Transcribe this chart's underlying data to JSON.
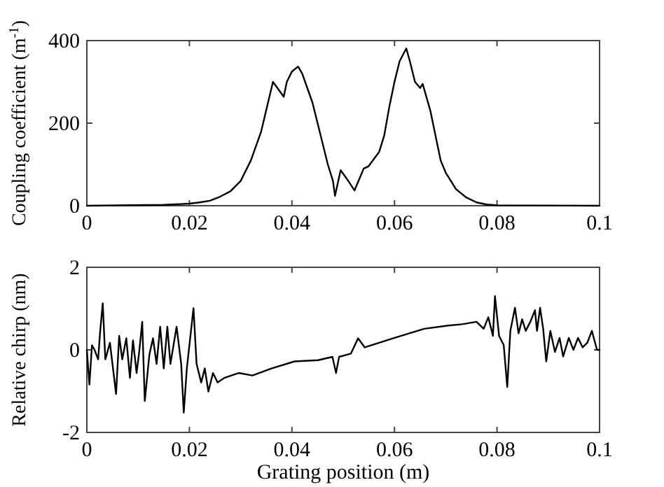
{
  "chart_data": [
    {
      "type": "line",
      "ylabel": "Coupling coefficient (m$^{-1}$)",
      "xlim": [
        0,
        0.1
      ],
      "xticks": [
        0,
        0.02,
        0.04,
        0.06,
        0.08,
        0.1
      ],
      "ylim": [
        0,
        400
      ],
      "yticks": [
        0,
        200,
        400
      ],
      "grid": false,
      "line_style": "solid",
      "marker": "none",
      "series": [
        {
          "color": "#000000",
          "x": [
            0,
            0.015,
            0.02,
            0.022,
            0.024,
            0.026,
            0.028,
            0.03,
            0.032,
            0.034,
            0.0363,
            0.0384,
            0.039,
            0.04,
            0.0412,
            0.042,
            0.044,
            0.046,
            0.047,
            0.048,
            0.0484,
            0.0495,
            0.051,
            0.0522,
            0.054,
            0.0549,
            0.057,
            0.058,
            0.059,
            0.06,
            0.061,
            0.0623,
            0.063,
            0.064,
            0.065,
            0.0655,
            0.067,
            0.068,
            0.069,
            0.07,
            0.072,
            0.074,
            0.076,
            0.078,
            0.08,
            0.1
          ],
          "values": [
            0,
            2,
            5,
            8,
            12,
            22,
            35,
            60,
            110,
            180,
            300,
            264,
            300,
            325,
            337,
            320,
            250,
            150,
            100,
            60,
            24,
            86,
            60,
            37,
            90,
            95,
            130,
            170,
            240,
            300,
            350,
            381,
            350,
            300,
            285,
            295,
            230,
            170,
            110,
            80,
            40,
            20,
            8,
            3,
            1,
            0
          ]
        }
      ]
    },
    {
      "type": "line",
      "xlabel": "Grating position (m)",
      "ylabel": "Relative chirp (nm)",
      "xlim": [
        0,
        0.1
      ],
      "xticks": [
        0,
        0.02,
        0.04,
        0.06,
        0.08,
        0.1
      ],
      "ylim": [
        -2,
        2
      ],
      "yticks": [
        -2,
        0,
        2
      ],
      "grid": false,
      "line_style": "solid",
      "marker": "none",
      "series": [
        {
          "color": "#000000",
          "x": [
            0,
            0.0005,
            0.001,
            0.0015,
            0.0022,
            0.0026,
            0.0031,
            0.0036,
            0.0045,
            0.0057,
            0.0063,
            0.0069,
            0.0077,
            0.0084,
            0.009,
            0.0097,
            0.0102,
            0.0108,
            0.0113,
            0.0122,
            0.0129,
            0.0136,
            0.0143,
            0.015,
            0.0157,
            0.0163,
            0.0175,
            0.0184,
            0.0189,
            0.0195,
            0.0208,
            0.0214,
            0.0223,
            0.023,
            0.0237,
            0.0246,
            0.0255,
            0.0268,
            0.0296,
            0.0323,
            0.036,
            0.0405,
            0.0451,
            0.0479,
            0.0486,
            0.0492,
            0.0515,
            0.0529,
            0.0542,
            0.057,
            0.06,
            0.0658,
            0.0705,
            0.0732,
            0.076,
            0.0774,
            0.0783,
            0.0792,
            0.0796,
            0.0804,
            0.0813,
            0.082,
            0.0826,
            0.0835,
            0.0842,
            0.0849,
            0.0856,
            0.0865,
            0.0874,
            0.0878,
            0.0884,
            0.089,
            0.0896,
            0.0904,
            0.0913,
            0.0922,
            0.0929,
            0.094,
            0.0949,
            0.0958,
            0.0967,
            0.0976,
            0.0985,
            0.0995,
            0.1
          ],
          "values": [
            0,
            -0.84,
            0.11,
            0,
            -0.23,
            0.45,
            1.13,
            -0.23,
            0.17,
            -1.07,
            0.34,
            -0.23,
            0.28,
            -0.68,
            0.23,
            -0.56,
            -0.06,
            0.68,
            -1.24,
            -0.11,
            0.28,
            -0.34,
            0.56,
            -0.45,
            0.56,
            -0.34,
            0.56,
            -0.34,
            -1.52,
            -0.45,
            1.01,
            -0.34,
            -0.79,
            -0.45,
            -1.01,
            -0.56,
            -0.79,
            -0.68,
            -0.56,
            -0.62,
            -0.45,
            -0.28,
            -0.25,
            -0.17,
            -0.56,
            -0.17,
            -0.09,
            0.28,
            0.06,
            0.17,
            0.29,
            0.51,
            0.59,
            0.62,
            0.68,
            0.51,
            0.79,
            0.34,
            1.3,
            0.34,
            0.12,
            -0.9,
            0.46,
            1.02,
            0.4,
            0.74,
            0.46,
            0.68,
            0.96,
            0.46,
            1.02,
            0.51,
            -0.28,
            0.46,
            -0.05,
            0.29,
            -0.16,
            0.29,
            0,
            0.29,
            0.06,
            0.17,
            0.46,
            0,
            0
          ]
        }
      ]
    }
  ]
}
